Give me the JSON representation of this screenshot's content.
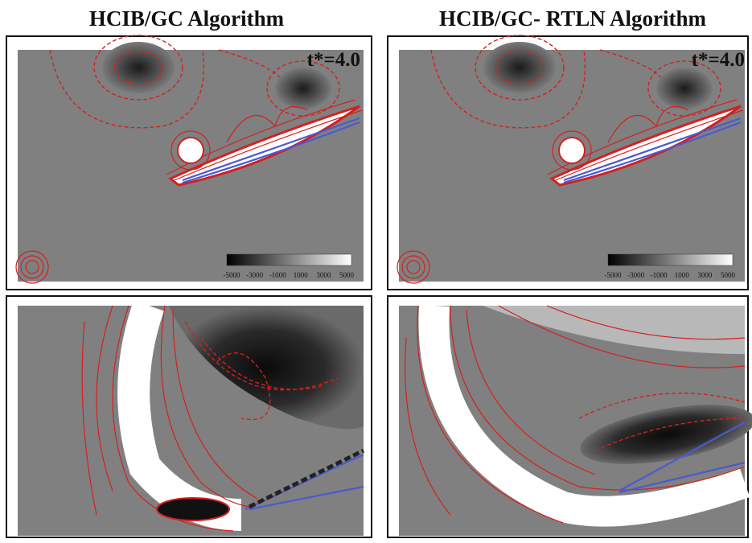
{
  "columns": [
    {
      "title": "HCIB/GC Algorithm",
      "time_label": "t*=4.0",
      "colorbar_labels": [
        "-5000",
        "-3000",
        "-1000",
        "1000",
        "3000",
        "5000"
      ]
    },
    {
      "title": "HCIB/GC- RTLN Algorithm",
      "time_label": "t*=4.0",
      "colorbar_labels": [
        "-5000",
        "-3000",
        "-1000",
        "1000",
        "3000",
        "5000"
      ]
    }
  ]
}
